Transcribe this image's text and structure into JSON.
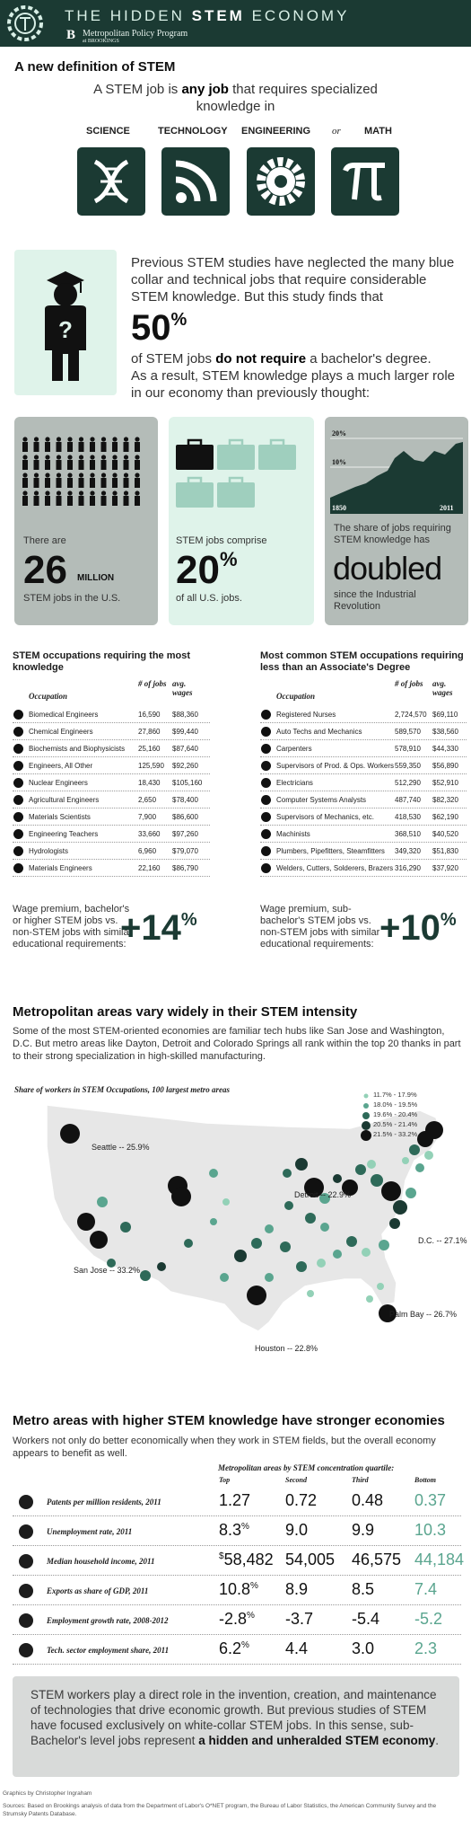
{
  "header": {
    "title_light": "THE HIDDEN ",
    "title_bold": "STEM",
    "title_end": " ECONOMY",
    "program": "Metropolitan Policy Program",
    "affiliation": "at BROOKINGS",
    "logo_letter": "B"
  },
  "definition": {
    "title": "A new definition of STEM",
    "text_pre": "A STEM job is ",
    "text_bold": "any job",
    "text_post": " that requires specialized knowledge in",
    "categories": [
      "SCIENCE",
      "TECHNOLOGY",
      "ENGINEERING",
      "MATH"
    ],
    "or_word": "or",
    "icons": [
      "dna-icon",
      "rss-icon",
      "gear-icon",
      "pi-icon"
    ]
  },
  "study": {
    "text1": "Previous STEM studies have neglected the many blue collar and technical jobs that require considerable STEM knowledge. But this study finds that",
    "big_number": "50",
    "big_unit": "%",
    "text2_pre": "of STEM jobs ",
    "text2_bold": "do not require",
    "text2_post": " a bachelor's degree.",
    "text3": "As a result, STEM knowledge plays a much larger role in our economy than previously thought:"
  },
  "stats": {
    "jobs": {
      "pre": "There are",
      "number": "26",
      "unit": "MILLION",
      "post": "STEM jobs in the U.S."
    },
    "share": {
      "pre": "STEM jobs comprise",
      "number": "20",
      "unit": "%",
      "post": "of all U.S. jobs."
    },
    "history": {
      "pre": "The share of jobs requiring STEM knowledge has",
      "word": "doubled",
      "post": "since the Industrial Revolution",
      "chart_data": {
        "type": "area",
        "x_start_label": "1850",
        "x_end_label": "2011",
        "y_ticks": [
          "20%",
          "10%"
        ],
        "shape": "rising from near 5% in 1850 to about 20% in 2011"
      }
    }
  },
  "tables": {
    "left": {
      "title": "STEM occupations requiring the most knowledge",
      "headers": [
        "Occupation",
        "# of jobs",
        "avg. wages"
      ],
      "rows": [
        {
          "occ": "Biomedical Engineers",
          "jobs": "16,590",
          "wage": "$88,360",
          "icon": "heart-monitor-icon"
        },
        {
          "occ": "Chemical Engineers",
          "jobs": "27,860",
          "wage": "$99,440",
          "icon": "flask-icon"
        },
        {
          "occ": "Biochemists and Biophysicists",
          "jobs": "25,160",
          "wage": "$87,640",
          "icon": "dna-icon"
        },
        {
          "occ": "Engineers, All Other",
          "jobs": "125,590",
          "wage": "$92,260",
          "icon": "gear-icon"
        },
        {
          "occ": "Nuclear Engineers",
          "jobs": "18,430",
          "wage": "$105,160",
          "icon": "radiation-icon"
        },
        {
          "occ": "Agricultural Engineers",
          "jobs": "2,650",
          "wage": "$78,400",
          "icon": "wheat-icon"
        },
        {
          "occ": "Materials Scientists",
          "jobs": "7,900",
          "wage": "$86,600",
          "icon": "molecule-icon"
        },
        {
          "occ": "Engineering Teachers",
          "jobs": "33,660",
          "wage": "$97,260",
          "icon": "chalkboard-icon"
        },
        {
          "occ": "Hydrologists",
          "jobs": "6,960",
          "wage": "$79,070",
          "icon": "water-drop-icon"
        },
        {
          "occ": "Materials Engineers",
          "jobs": "22,160",
          "wage": "$86,790",
          "icon": "cubes-icon"
        }
      ],
      "wage_text": "Wage premium, bachelor's or higher  STEM jobs vs. non-STEM jobs with similar educational requirements:",
      "premium": "+14",
      "premium_unit": "%"
    },
    "right": {
      "title": "Most common STEM occupations requiring less than an Associate's Degree",
      "headers": [
        "Occupation",
        "# of jobs",
        "avg. wages"
      ],
      "rows": [
        {
          "occ": "Registered Nurses",
          "jobs": "2,724,570",
          "wage": "$69,110",
          "icon": "medical-cross-icon"
        },
        {
          "occ": "Auto Techs and Mechanics",
          "jobs": "589,570",
          "wage": "$38,560",
          "icon": "car-icon"
        },
        {
          "occ": "Carpenters",
          "jobs": "578,910",
          "wage": "$44,330",
          "icon": "tools-icon"
        },
        {
          "occ": "Supervisors of Prod. & Ops. Workers",
          "jobs": "559,350",
          "wage": "$56,890",
          "icon": "hardhat-icon"
        },
        {
          "occ": "Electricians",
          "jobs": "512,290",
          "wage": "$52,910",
          "icon": "plug-icon"
        },
        {
          "occ": "Computer Systems Analysts",
          "jobs": "487,740",
          "wage": "$82,320",
          "icon": "computer-icon"
        },
        {
          "occ": "Supervisors of Mechanics, etc.",
          "jobs": "418,530",
          "wage": "$62,190",
          "icon": "clipboard-icon"
        },
        {
          "occ": "Machinists",
          "jobs": "368,510",
          "wage": "$40,520",
          "icon": "cog-icon"
        },
        {
          "occ": "Plumbers, Pipefitters, Steamfitters",
          "jobs": "349,320",
          "wage": "$51,830",
          "icon": "wrench-icon"
        },
        {
          "occ": "Welders, Cutters, Solderers, Brazers",
          "jobs": "316,290",
          "wage": "$37,920",
          "icon": "welding-mask-icon"
        }
      ],
      "wage_text": "Wage premium, sub-bachelor's STEM jobs vs. non-STEM jobs with similar educational requirements:",
      "premium": "+10",
      "premium_unit": "%"
    }
  },
  "metro": {
    "title": "Metropolitan areas vary widely in their STEM intensity",
    "text": "Some of the most STEM-oriented economies are familiar tech hubs like San Jose and Washington, D.C. But metro areas like Dayton, Detroit and Colorado Springs all rank within the top 20 thanks in part to their strong specialization in high-skilled manufacturing.",
    "map_caption": "Share of workers in STEM Occupations, 100 largest metro areas",
    "legend": [
      "11.7% - 17.9%",
      "18.0% - 19.5%",
      "19.6% - 20.4%",
      "20.5% - 21.4%",
      "21.5% - 33.2%"
    ],
    "labels": [
      {
        "name": "Seattle -- 25.9%"
      },
      {
        "name": "Detroit -- 22.9%"
      },
      {
        "name": "D.C. -- 27.1%"
      },
      {
        "name": "San Jose -- 33.2%"
      },
      {
        "name": "Palm Bay -- 26.7%"
      },
      {
        "name": "Houston -- 22.8%"
      }
    ]
  },
  "economies": {
    "title": "Metro areas with higher STEM knowledge have stronger economies",
    "text": "Workers not only do better economically when they work in STEM fields, but the overall economy appears to benefit as well.",
    "caption": "Metropolitan areas by STEM concentration quartile:",
    "quartiles": [
      "Top",
      "Second",
      "Third",
      "Bottom"
    ],
    "rows": [
      {
        "label": "Patents per million residents, 2011",
        "icon": "lightbulb-icon",
        "values": [
          "1.27",
          "0.72",
          "0.48",
          "0.37"
        ],
        "top_prefix": "",
        "top_suffix": ""
      },
      {
        "label": "Unemployment rate, 2011",
        "icon": "walking-person-icon",
        "values": [
          "8.3",
          "9.0",
          "9.9",
          "10.3"
        ],
        "top_prefix": "",
        "top_suffix": "%"
      },
      {
        "label": "Median household income, 2011",
        "icon": "cash-icon",
        "values": [
          "58,482",
          "54,005",
          "46,575",
          "44,184"
        ],
        "top_prefix": "$",
        "top_suffix": ""
      },
      {
        "label": "Exports as share of GDP, 2011",
        "icon": "globe-icon",
        "values": [
          "10.8",
          "8.9",
          "8.5",
          "7.4"
        ],
        "top_prefix": "",
        "top_suffix": "%"
      },
      {
        "label": "Employment growth rate, 2008-2012",
        "icon": "briefcase-icon",
        "values": [
          "-2.8",
          "-3.7",
          "-5.4",
          "-5.2"
        ],
        "top_prefix": "",
        "top_suffix": "%"
      },
      {
        "label": "Tech. sector employment share, 2011",
        "icon": "rss-icon",
        "values": [
          "6.2",
          "4.4",
          "3.0",
          "2.3"
        ],
        "top_prefix": "",
        "top_suffix": "%"
      }
    ]
  },
  "conclusion": {
    "text": "STEM workers play a direct role in the invention, creation, and maintenance of technologies that drive economic growth. But previous studies of STEM have focused exclusively on white-collar STEM jobs. In this sense, sub-Bachelor's level jobs represent ",
    "bold": "a hidden and unheralded STEM economy",
    "end": "."
  },
  "footer": {
    "credit": "Graphics by Christopher Ingraham",
    "sources": "Sources: Based on Brookings analysis of data from the Department of Labor's O*NET program, the Bureau of Labor Statistics, the American Community Survey and the Strumsky Patents Database."
  },
  "colors": {
    "dark": "#1b3a33",
    "mint": "#dff3ea",
    "gray_panel": "#b4bcb8",
    "accent": "#5aa58f"
  }
}
